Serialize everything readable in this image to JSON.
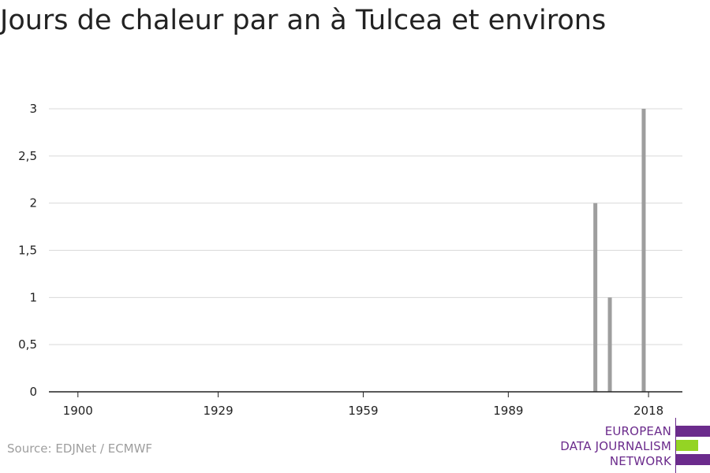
{
  "title": "Jours de chaleur par an à Tulcea et environs",
  "source": "Source: EDJNet / ECMWF",
  "logo": {
    "lines": [
      "EUROPEAN",
      "DATA JOURNALISM",
      "NETWORK"
    ],
    "colors": {
      "purple": "#6b2b8c",
      "green": "#94d424"
    }
  },
  "chart_data": {
    "type": "bar",
    "title": "Jours de chaleur par an à Tulcea et environs",
    "xlabel": "",
    "ylabel": "",
    "x_tick_labels": [
      "1900",
      "1929",
      "1959",
      "1989",
      "2018"
    ],
    "x_ticks": [
      1900,
      1929,
      1959,
      1989,
      2018
    ],
    "y_tick_labels": [
      "0",
      "0,5",
      "1",
      "1,5",
      "2",
      "2,5",
      "3"
    ],
    "y_ticks": [
      0,
      0.5,
      1,
      1.5,
      2,
      2.5,
      3
    ],
    "xlim": [
      1894,
      2025
    ],
    "ylim": [
      0,
      3
    ],
    "grid": true,
    "bar_color": "#9e9e9e",
    "series": [
      {
        "x": [
          2007,
          2010,
          2017
        ],
        "values": [
          2,
          1,
          3
        ]
      }
    ]
  }
}
